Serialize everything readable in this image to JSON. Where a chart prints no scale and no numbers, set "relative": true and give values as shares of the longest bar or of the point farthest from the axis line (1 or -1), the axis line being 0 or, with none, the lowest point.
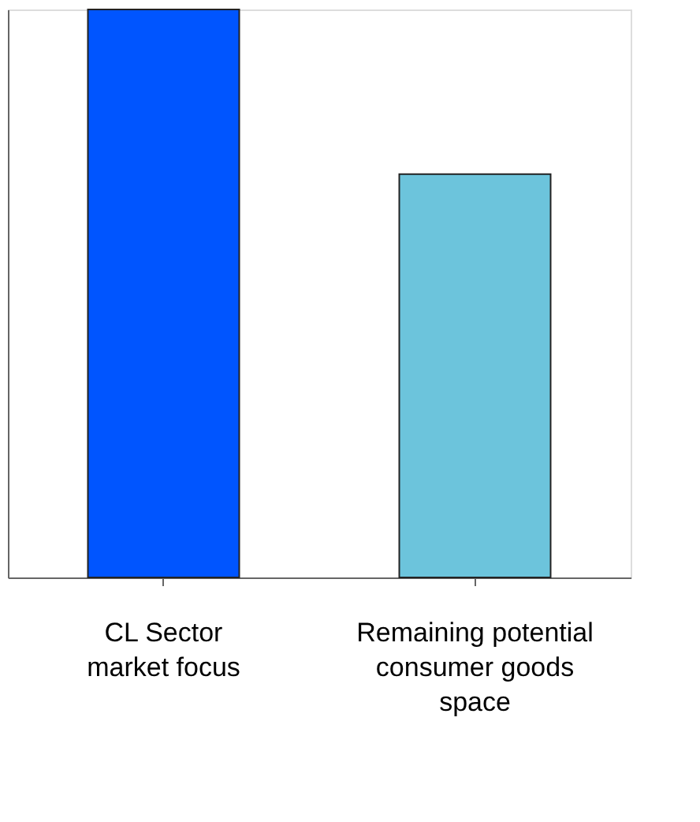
{
  "chart_data": {
    "type": "bar",
    "relative": true,
    "categories": [
      "CL Sector\nmarket focus",
      "Remaining potential\nconsumer goods\nspace"
    ],
    "values": [
      1,
      0.71
    ],
    "colors": [
      "#0055ff",
      "#6cc4dc"
    ],
    "grid": false
  }
}
